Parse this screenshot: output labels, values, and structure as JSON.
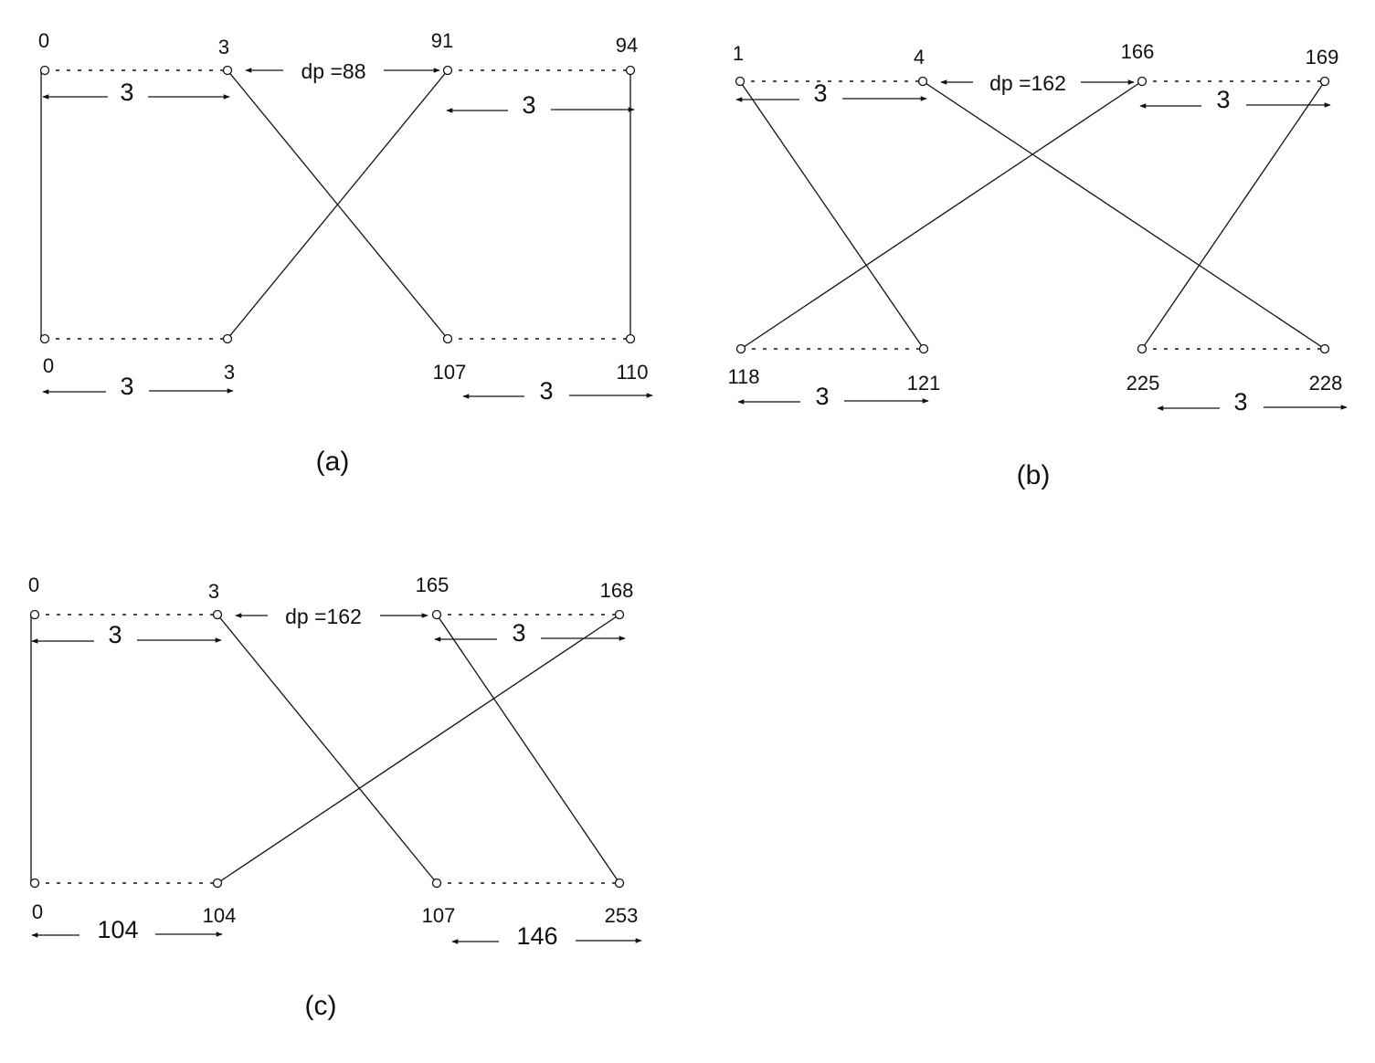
{
  "diagrams": [
    {
      "caption": "(a)",
      "top": {
        "labels": [
          "0",
          "3",
          "91",
          "94"
        ],
        "gap_label": "dp =88",
        "span_left": "3",
        "span_right": "3"
      },
      "bottom": {
        "labels": [
          "0",
          "3",
          "107",
          "110"
        ],
        "span_left": "3",
        "span_right": "3"
      },
      "links": [
        [
          "top.0",
          "bottom.0"
        ],
        [
          "top.1",
          "bottom.2"
        ],
        [
          "top.2",
          "bottom.1"
        ],
        [
          "top.3",
          "bottom.3"
        ]
      ]
    },
    {
      "caption": "(b)",
      "top": {
        "labels": [
          "1",
          "4",
          "166",
          "169"
        ],
        "gap_label": "dp =162",
        "span_left": "3",
        "span_right": "3"
      },
      "bottom": {
        "labels": [
          "118",
          "121",
          "225",
          "228"
        ],
        "span_left": "3",
        "span_right": "3"
      },
      "links": [
        [
          "top.0",
          "bottom.1"
        ],
        [
          "top.1",
          "bottom.3"
        ],
        [
          "top.2",
          "bottom.0"
        ],
        [
          "top.3",
          "bottom.2"
        ]
      ]
    },
    {
      "caption": "(c)",
      "top": {
        "labels": [
          "0",
          "3",
          "165",
          "168"
        ],
        "gap_label": "dp =162",
        "span_left": "3",
        "span_right": "3"
      },
      "bottom": {
        "labels": [
          "0",
          "104",
          "107",
          "253"
        ],
        "span_left": "104",
        "span_right": "146"
      },
      "links": [
        [
          "top.0",
          "bottom.0"
        ],
        [
          "top.1",
          "bottom.2"
        ],
        [
          "top.2",
          "bottom.3"
        ],
        [
          "top.3",
          "bottom.1"
        ]
      ]
    }
  ],
  "colors": {
    "ink": "#111111",
    "background": "#ffffff"
  }
}
